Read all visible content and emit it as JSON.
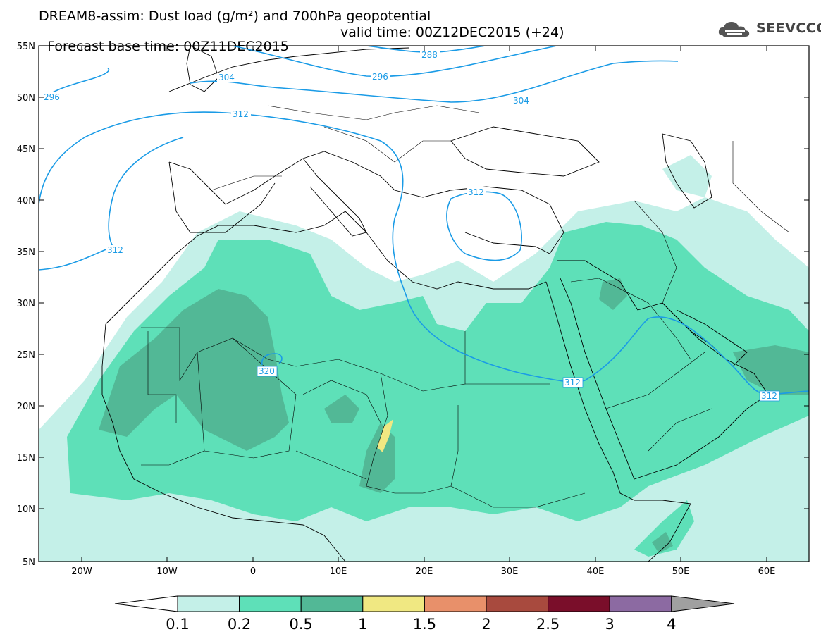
{
  "title": {
    "line1": "DREAM8-assim: Dust load (g/m²) and 700hPa geopotential",
    "line2_base": "Forecast base time: 00Z11DEC2015",
    "line2_valid": "valid time: 00Z12DEC2015 (+24)"
  },
  "logo": {
    "text": "SEEVCCC",
    "icon": "cloud-icon"
  },
  "map": {
    "lat_labels": [
      "55N",
      "50N",
      "45N",
      "40N",
      "35N",
      "30N",
      "25N",
      "20N",
      "15N",
      "10N",
      "5N"
    ],
    "lon_labels": [
      "20W",
      "10W",
      "0",
      "10E",
      "20E",
      "30E",
      "40E",
      "50E",
      "60E"
    ],
    "contours": {
      "line_color": "#1a9be6",
      "labels": [
        "288",
        "296",
        "304",
        "296",
        "304",
        "312",
        "312",
        "320",
        "312",
        "312",
        "312"
      ]
    }
  },
  "colorbar": {
    "levels": [
      "0.1",
      "0.2",
      "0.5",
      "1",
      "1.5",
      "2",
      "2.5",
      "3",
      "4"
    ],
    "colors": [
      "#c4f0e8",
      "#5ee0b8",
      "#52b896",
      "#f0e882",
      "#e8906a",
      "#a84a3e",
      "#7a0e2a",
      "#8c6aa2"
    ],
    "end_colors": [
      "#ffffff",
      "#a0a0a0"
    ]
  }
}
